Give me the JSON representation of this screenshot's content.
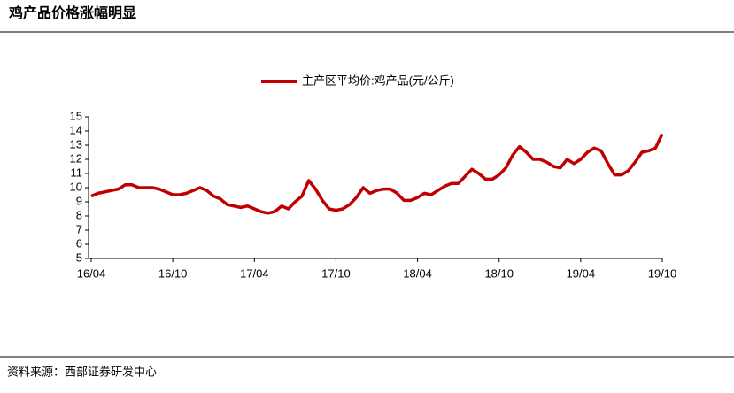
{
  "header": {
    "title": "鸡产品价格涨幅明显"
  },
  "chart_data": {
    "type": "line",
    "categories": [
      "16/04",
      null,
      null,
      null,
      null,
      null,
      null,
      null,
      null,
      null,
      null,
      null,
      "16/10",
      null,
      null,
      null,
      null,
      null,
      null,
      null,
      null,
      null,
      null,
      null,
      "17/04",
      null,
      null,
      null,
      null,
      null,
      null,
      null,
      null,
      null,
      null,
      null,
      "17/10",
      null,
      null,
      null,
      null,
      null,
      null,
      null,
      null,
      null,
      null,
      null,
      "18/04",
      null,
      null,
      null,
      null,
      null,
      null,
      null,
      null,
      null,
      null,
      null,
      "18/10",
      null,
      null,
      null,
      null,
      null,
      null,
      null,
      null,
      null,
      null,
      null,
      "19/04",
      null,
      null,
      null,
      null,
      null,
      null,
      null,
      null,
      null,
      null,
      null,
      "19/10"
    ],
    "series": [
      {
        "name": "主产区平均价:鸡产品(元/公斤)",
        "color": "#c00000",
        "values": [
          9.4,
          9.6,
          9.7,
          9.8,
          9.9,
          10.2,
          10.2,
          10.0,
          10.0,
          10.0,
          9.9,
          9.7,
          9.5,
          9.5,
          9.6,
          9.8,
          10.0,
          9.8,
          9.4,
          9.2,
          8.8,
          8.7,
          8.6,
          8.7,
          8.5,
          8.3,
          8.2,
          8.3,
          8.7,
          8.5,
          9.0,
          9.4,
          10.5,
          9.9,
          9.1,
          8.5,
          8.4,
          8.5,
          8.8,
          9.3,
          10.0,
          9.6,
          9.8,
          9.9,
          9.9,
          9.6,
          9.1,
          9.1,
          9.3,
          9.6,
          9.5,
          9.8,
          10.1,
          10.3,
          10.3,
          10.8,
          11.3,
          11.0,
          10.6,
          10.6,
          10.9,
          11.4,
          12.3,
          12.9,
          12.5,
          12.0,
          12.0,
          11.8,
          11.5,
          11.4,
          12.0,
          11.7,
          12.0,
          12.5,
          12.8,
          12.6,
          11.7,
          10.9,
          10.9,
          11.2,
          11.8,
          12.5,
          12.6,
          12.8,
          13.8
        ]
      }
    ],
    "ylim": [
      5,
      15
    ],
    "yticks": [
      5,
      6,
      7,
      8,
      9,
      10,
      11,
      12,
      13,
      14,
      15
    ],
    "legend": "top"
  },
  "source": "资料来源：西部证券研发中心"
}
